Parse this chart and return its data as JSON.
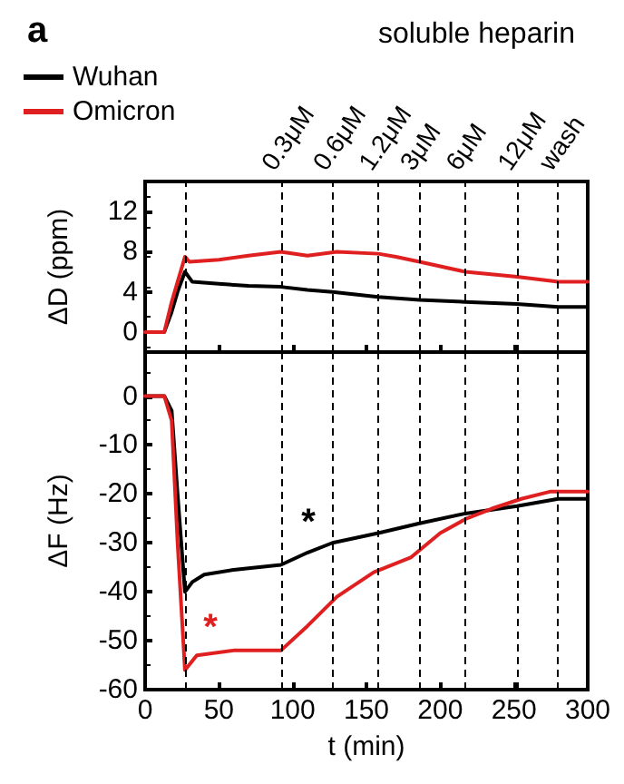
{
  "chart_data": [
    {
      "type": "line",
      "title": "a",
      "subtitle": "soluble heparin",
      "ylabel": "ΔD (ppm)",
      "xlim": [
        0,
        300
      ],
      "xticks": [
        0,
        50,
        100,
        150,
        200,
        250,
        300
      ],
      "ylim": [
        -2,
        15
      ],
      "yticks": [
        0,
        4,
        8,
        12
      ],
      "tick_labels": "y",
      "legend": "top left",
      "marker": "none",
      "grid": false,
      "series": [
        {
          "name": "Wuhan",
          "color": "#000000",
          "x": [
            0,
            13,
            18,
            22,
            27,
            32,
            50,
            70,
            92,
            110,
            127,
            158,
            186,
            217,
            252,
            280,
            300
          ],
          "values": [
            0,
            0,
            2,
            4,
            6,
            5,
            4.8,
            4.6,
            4.5,
            4.2,
            4,
            3.5,
            3.2,
            3,
            2.8,
            2.5,
            2.5
          ]
        },
        {
          "name": "Omicron",
          "color": "#e02020",
          "x": [
            0,
            13,
            18,
            22,
            27,
            30,
            50,
            70,
            92,
            110,
            130,
            158,
            170,
            186,
            217,
            252,
            280,
            300
          ],
          "values": [
            0,
            0,
            3,
            5,
            7.5,
            7,
            7.2,
            7.6,
            8,
            7.6,
            8,
            7.8,
            7.5,
            7,
            6,
            5.5,
            5,
            5
          ]
        }
      ],
      "ref_lines": [
        {
          "axis": "x",
          "value": 27,
          "label": null,
          "line_style": "dashed"
        },
        {
          "axis": "x",
          "value": 92,
          "label": "0.3μM",
          "line_style": "dashed"
        },
        {
          "axis": "x",
          "value": 127,
          "label": "0.6μM",
          "line_style": "dashed"
        },
        {
          "axis": "x",
          "value": 158,
          "label": "1.2μM",
          "line_style": "dashed"
        },
        {
          "axis": "x",
          "value": 186,
          "label": "3μM",
          "line_style": "dashed"
        },
        {
          "axis": "x",
          "value": 217,
          "label": "6μM",
          "line_style": "dashed"
        },
        {
          "axis": "x",
          "value": 252,
          "label": "12μM",
          "line_style": "dashed"
        },
        {
          "axis": "x",
          "value": 280,
          "label": "wash",
          "line_style": "dashed"
        }
      ]
    },
    {
      "type": "line",
      "xlabel": "t (min)",
      "ylabel": "ΔF (Hz)",
      "xlim": [
        0,
        300
      ],
      "xticks": [
        0,
        50,
        100,
        150,
        200,
        250,
        300
      ],
      "ylim": [
        -60,
        9
      ],
      "yticks": [
        0,
        -10,
        -20,
        -30,
        -40,
        -50,
        -60
      ],
      "marker": "none",
      "grid": false,
      "series": [
        {
          "color": "#000000",
          "x": [
            0,
            13,
            18,
            22,
            27,
            32,
            40,
            60,
            92,
            110,
            127,
            158,
            186,
            217,
            252,
            280,
            300
          ],
          "values": [
            0,
            0,
            -3,
            -20,
            -40,
            -38,
            -36.5,
            -35.5,
            -34.5,
            -32,
            -30,
            -28,
            -26,
            -24,
            -22.5,
            -21,
            -21
          ]
        },
        {
          "color": "#e02020",
          "x": [
            0,
            13,
            18,
            22,
            27,
            35,
            60,
            92,
            110,
            130,
            155,
            180,
            200,
            218,
            235,
            255,
            275,
            300
          ],
          "values": [
            0,
            0,
            -5,
            -30,
            -56,
            -53,
            -52,
            -52,
            -47,
            -41,
            -36,
            -33,
            -28,
            -25,
            -23,
            -21,
            -19.5,
            -19.5
          ]
        }
      ],
      "ref_lines": [
        {
          "axis": "x",
          "value": 27,
          "line_style": "dashed"
        },
        {
          "axis": "x",
          "value": 92,
          "line_style": "dashed"
        },
        {
          "axis": "x",
          "value": 127,
          "line_style": "dashed"
        },
        {
          "axis": "x",
          "value": 158,
          "line_style": "dashed"
        },
        {
          "axis": "x",
          "value": 186,
          "line_style": "dashed"
        },
        {
          "axis": "x",
          "value": 217,
          "line_style": "dashed"
        },
        {
          "axis": "x",
          "value": 252,
          "line_style": "dashed"
        },
        {
          "axis": "x",
          "value": 280,
          "line_style": "dashed"
        }
      ],
      "annotations": [
        "*",
        "*"
      ]
    }
  ]
}
